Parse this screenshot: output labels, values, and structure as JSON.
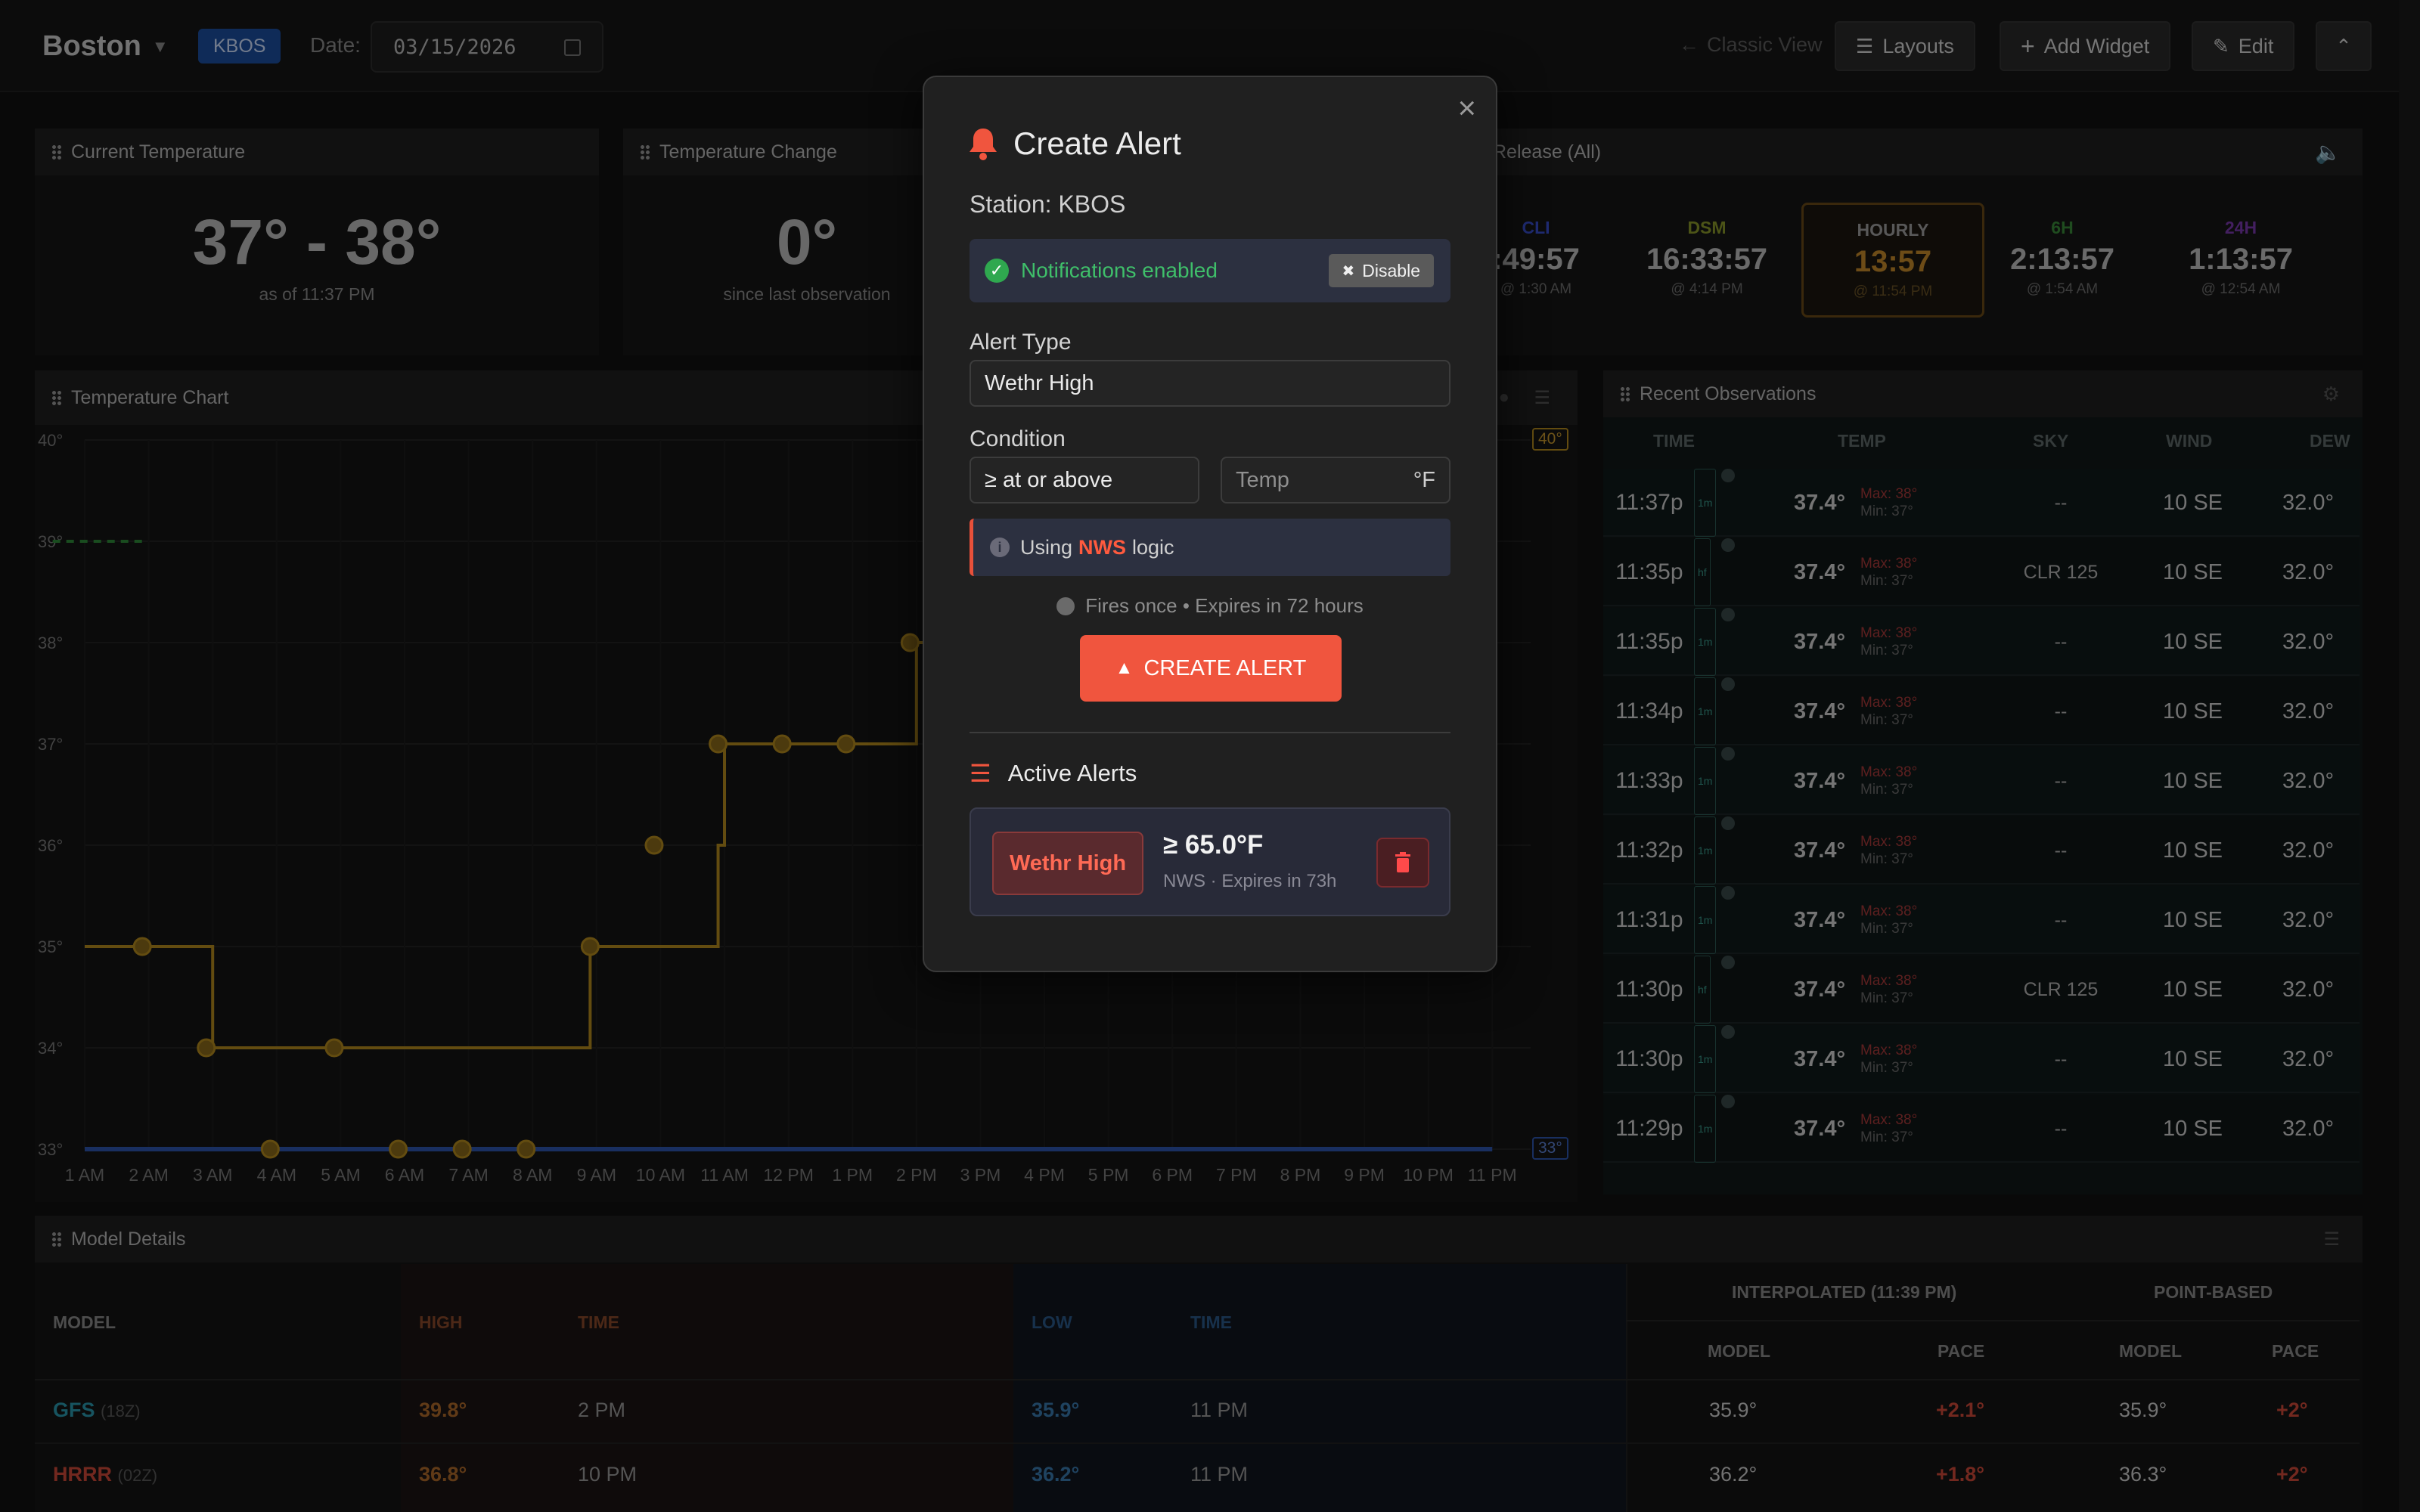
{
  "header": {
    "city": "Boston",
    "station_badge": "KBOS",
    "date_label": "Date:",
    "date_value": "03/15/2026",
    "classic_view": "Classic View",
    "layouts": "Layouts",
    "add_widget": "Add Widget",
    "edit": "Edit"
  },
  "current_temp": {
    "title": "Current Temperature",
    "value": "37° - 38°",
    "sub": "as of 11:37 PM"
  },
  "temp_change": {
    "title": "Temperature Change",
    "value": "0°",
    "sub": "since last observation"
  },
  "release": {
    "title": "Release (All)",
    "items": [
      {
        "label": "CLI",
        "time": ":49:57",
        "at": "@ 1:30 AM",
        "color": "#3a4fd0"
      },
      {
        "label": "DSM",
        "time": "16:33:57",
        "at": "@ 4:14 PM",
        "color": "#8a9a2a"
      },
      {
        "label": "HOURLY",
        "time": "13:57",
        "at": "@ 11:54 PM",
        "color": "#c78a2a"
      },
      {
        "label": "6H",
        "time": "2:13:57",
        "at": "@ 1:54 AM",
        "color": "#3a8a3a"
      },
      {
        "label": "24H",
        "time": "1:13:57",
        "at": "@ 12:54 AM",
        "color": "#7a3ab0"
      }
    ]
  },
  "temp_chart": {
    "title": "Temperature Chart",
    "badge_high": "40°",
    "badge_low": "33°"
  },
  "chart_data": {
    "type": "line",
    "title": "Temperature Chart",
    "xlabel": "",
    "ylabel": "",
    "x_ticks": [
      "1 AM",
      "2 AM",
      "3 AM",
      "4 AM",
      "5 AM",
      "6 AM",
      "7 AM",
      "8 AM",
      "9 AM",
      "10 AM",
      "11 AM",
      "12 PM",
      "1 PM",
      "2 PM",
      "3 PM",
      "4 PM",
      "5 PM",
      "6 PM",
      "7 PM",
      "8 PM",
      "9 PM",
      "10 PM",
      "11 PM"
    ],
    "y_ticks": [
      "33°",
      "34°",
      "35°",
      "36°",
      "37°",
      "38°",
      "39°",
      "40°"
    ],
    "ylim": [
      33,
      40
    ],
    "series": [
      {
        "name": "",
        "color": "#b58a1e",
        "x": [
          1,
          1.9,
          2,
          3,
          4,
          5,
          6,
          7,
          8,
          8.9,
          9,
          10,
          10.9,
          11,
          12,
          13,
          14,
          14,
          15,
          16,
          17,
          18,
          19,
          20,
          21,
          22,
          22.5
        ],
        "values": [
          35,
          35,
          35,
          34,
          34,
          34,
          34,
          34,
          34,
          35,
          35,
          35,
          36,
          37,
          37,
          37,
          37,
          38,
          38,
          38,
          38,
          38,
          38,
          38,
          38,
          38,
          38
        ]
      },
      {
        "name": "",
        "color": "#2f57b0",
        "x": [
          1,
          2,
          3,
          4,
          5,
          6,
          7,
          8,
          9,
          10,
          11,
          12,
          13,
          14,
          15,
          16,
          17,
          18,
          19,
          20,
          21,
          22,
          23
        ],
        "values": [
          33,
          33,
          33,
          33,
          33,
          33,
          33,
          33,
          33,
          33,
          33,
          33,
          33,
          33,
          33,
          33,
          33,
          33,
          33,
          33,
          33,
          33,
          33
        ]
      },
      {
        "name": "",
        "color": "#2f8a3a",
        "x": [
          0.5,
          1.9
        ],
        "values": [
          39,
          39
        ]
      }
    ],
    "points": [
      {
        "x": 1.9,
        "y": 35
      },
      {
        "x": 2.9,
        "y": 34
      },
      {
        "x": 3.9,
        "y": 33
      },
      {
        "x": 4.9,
        "y": 34
      },
      {
        "x": 5.9,
        "y": 33
      },
      {
        "x": 6.9,
        "y": 33
      },
      {
        "x": 7.9,
        "y": 33
      },
      {
        "x": 8.9,
        "y": 35
      },
      {
        "x": 9.9,
        "y": 36
      },
      {
        "x": 10.9,
        "y": 37
      },
      {
        "x": 11.9,
        "y": 37
      },
      {
        "x": 12.9,
        "y": 37
      },
      {
        "x": 13.9,
        "y": 38
      }
    ]
  },
  "observations": {
    "title": "Recent Observations",
    "columns": [
      "TIME",
      "TEMP",
      "SKY",
      "WIND",
      "DEW"
    ],
    "rows": [
      {
        "time": "11:37p",
        "tag": "1m",
        "temp": "37.4°",
        "max": "Max: 38°",
        "min": "Min: 37°",
        "sky": "--",
        "wind": "10 SE",
        "dew": "32.0°"
      },
      {
        "time": "11:35p",
        "tag": "hf",
        "temp": "37.4°",
        "max": "Max: 38°",
        "min": "Min: 37°",
        "sky": "CLR 125",
        "wind": "10 SE",
        "dew": "32.0°"
      },
      {
        "time": "11:35p",
        "tag": "1m",
        "temp": "37.4°",
        "max": "Max: 38°",
        "min": "Min: 37°",
        "sky": "--",
        "wind": "10 SE",
        "dew": "32.0°"
      },
      {
        "time": "11:34p",
        "tag": "1m",
        "temp": "37.4°",
        "max": "Max: 38°",
        "min": "Min: 37°",
        "sky": "--",
        "wind": "10 SE",
        "dew": "32.0°"
      },
      {
        "time": "11:33p",
        "tag": "1m",
        "temp": "37.4°",
        "max": "Max: 38°",
        "min": "Min: 37°",
        "sky": "--",
        "wind": "10 SE",
        "dew": "32.0°"
      },
      {
        "time": "11:32p",
        "tag": "1m",
        "temp": "37.4°",
        "max": "Max: 38°",
        "min": "Min: 37°",
        "sky": "--",
        "wind": "10 SE",
        "dew": "32.0°"
      },
      {
        "time": "11:31p",
        "tag": "1m",
        "temp": "37.4°",
        "max": "Max: 38°",
        "min": "Min: 37°",
        "sky": "--",
        "wind": "10 SE",
        "dew": "32.0°"
      },
      {
        "time": "11:30p",
        "tag": "hf",
        "temp": "37.4°",
        "max": "Max: 38°",
        "min": "Min: 37°",
        "sky": "CLR 125",
        "wind": "10 SE",
        "dew": "32.0°"
      },
      {
        "time": "11:30p",
        "tag": "1m",
        "temp": "37.4°",
        "max": "Max: 38°",
        "min": "Min: 37°",
        "sky": "--",
        "wind": "10 SE",
        "dew": "32.0°"
      },
      {
        "time": "11:29p",
        "tag": "1m",
        "temp": "37.4°",
        "max": "Max: 38°",
        "min": "Min: 37°",
        "sky": "--",
        "wind": "10 SE",
        "dew": "32.0°"
      }
    ]
  },
  "model_details": {
    "title": "Model Details",
    "col_model": "MODEL",
    "col_high": "HIGH",
    "col_time": "TIME",
    "col_low": "LOW",
    "col_time2": "TIME",
    "interp_header": "INTERPOLATED (11:39 PM)",
    "point_header": "POINT-BASED",
    "sub_model": "MODEL",
    "sub_pace": "PACE",
    "rows": [
      {
        "name": "GFS",
        "run": "(18Z)",
        "name_color": "#2a9ab0",
        "high": "39.8°",
        "high_time": "2 PM",
        "low": "35.9°",
        "low_time": "11 PM",
        "i_model": "35.9°",
        "i_pace": "+2.1°",
        "p_model": "35.9°",
        "p_pace": "+2°"
      },
      {
        "name": "HRRR",
        "run": "(02Z)",
        "name_color": "#d04a3a",
        "high": "36.8°",
        "high_time": "10 PM",
        "low": "36.2°",
        "low_time": "11 PM",
        "i_model": "36.2°",
        "i_pace": "+1.8°",
        "p_model": "36.3°",
        "p_pace": "+2°"
      }
    ]
  },
  "modal": {
    "title": "Create Alert",
    "station": "Station: KBOS",
    "notif_text": "Notifications enabled",
    "disable_btn": "Disable",
    "alert_type_label": "Alert Type",
    "alert_type_value": "Wethr High",
    "condition_label": "Condition",
    "condition_value": "≥ at or above",
    "temp_placeholder": "Temp",
    "temp_unit": "°F",
    "logic_prefix": "Using",
    "logic_highlight": "NWS",
    "logic_suffix": "logic",
    "fires_text": "Fires once • Expires in 72 hours",
    "create_btn": "CREATE ALERT",
    "active_title": "Active Alerts",
    "active_item": {
      "badge": "Wethr High",
      "value": "≥ 65.0°F",
      "sub": "NWS · Expires in 73h"
    }
  }
}
